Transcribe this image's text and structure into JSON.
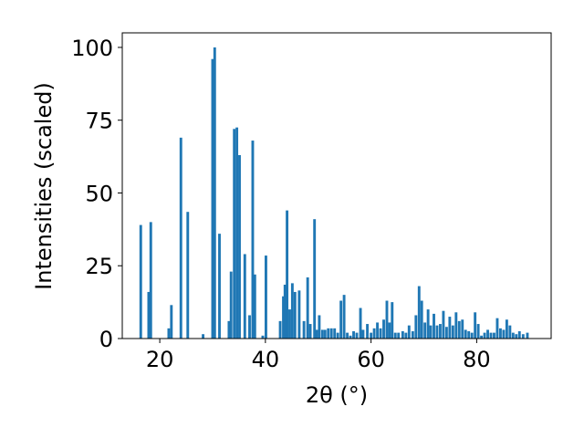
{
  "chart_data": {
    "type": "bar",
    "title": "",
    "xlabel": "2θ (°)",
    "ylabel": "Intensities (scaled)",
    "xlim": [
      12.9,
      94.1
    ],
    "ylim": [
      0,
      105
    ],
    "xticks": [
      20,
      40,
      60,
      80
    ],
    "yticks": [
      0,
      25,
      50,
      75,
      100
    ],
    "grid": false,
    "bar_color": "#1f77b4",
    "bar_width": 0.5,
    "series": [
      {
        "x": [
          16.4,
          17.9,
          18.3,
          21.7,
          22.2,
          24.0,
          25.3,
          28.2,
          30.0,
          30.4,
          31.3,
          33.1,
          33.5,
          34.1,
          34.6,
          35.1,
          36.1,
          37.0,
          37.6,
          38.0,
          39.5,
          40.1,
          42.8,
          43.4,
          43.7,
          44.1,
          44.6,
          45.1,
          45.6,
          46.4,
          47.3,
          48.0,
          48.5,
          49.3,
          49.7,
          50.2,
          50.8,
          51.3,
          51.9,
          52.5,
          53.1,
          53.7,
          54.3,
          54.9,
          55.5,
          56.1,
          56.7,
          57.3,
          58.0,
          58.5,
          59.3,
          60.0,
          60.6,
          61.2,
          61.8,
          62.4,
          63.0,
          63.5,
          64.0,
          64.6,
          65.2,
          66.0,
          66.6,
          67.2,
          67.9,
          68.5,
          69.1,
          69.6,
          70.2,
          70.8,
          71.3,
          71.9,
          72.5,
          73.1,
          73.7,
          74.3,
          74.9,
          75.5,
          76.1,
          76.7,
          77.3,
          77.9,
          78.5,
          79.1,
          79.7,
          80.3,
          80.9,
          81.5,
          82.1,
          82.7,
          83.3,
          83.9,
          84.5,
          85.1,
          85.7,
          86.3,
          86.9,
          87.5,
          88.1,
          88.8,
          89.6
        ],
        "values": [
          39,
          16,
          40,
          3.5,
          11.5,
          69,
          43.5,
          1.5,
          96,
          100,
          36,
          6,
          23,
          72,
          72.5,
          63,
          29,
          8,
          68,
          22,
          1,
          28.5,
          6,
          14.5,
          18.5,
          44,
          10,
          19,
          16,
          16.5,
          6,
          21,
          5,
          41,
          3,
          8,
          3,
          3,
          3.5,
          3.5,
          3.5,
          2,
          13,
          15,
          2,
          1,
          2.5,
          2,
          10.5,
          3,
          5,
          2,
          3.5,
          5.5,
          3.5,
          6.5,
          13,
          5.5,
          12.5,
          2,
          2,
          2.5,
          2,
          4.5,
          2.5,
          8,
          18,
          13,
          5.5,
          10,
          4.5,
          8.5,
          4.5,
          5,
          9.5,
          4,
          7.5,
          4.5,
          9,
          6,
          6.5,
          3,
          2.5,
          2,
          9,
          5,
          1,
          2,
          3,
          2,
          2,
          7,
          3.5,
          3,
          6.5,
          4.5,
          2,
          1.5,
          2.5,
          1.5,
          2
        ]
      }
    ]
  }
}
